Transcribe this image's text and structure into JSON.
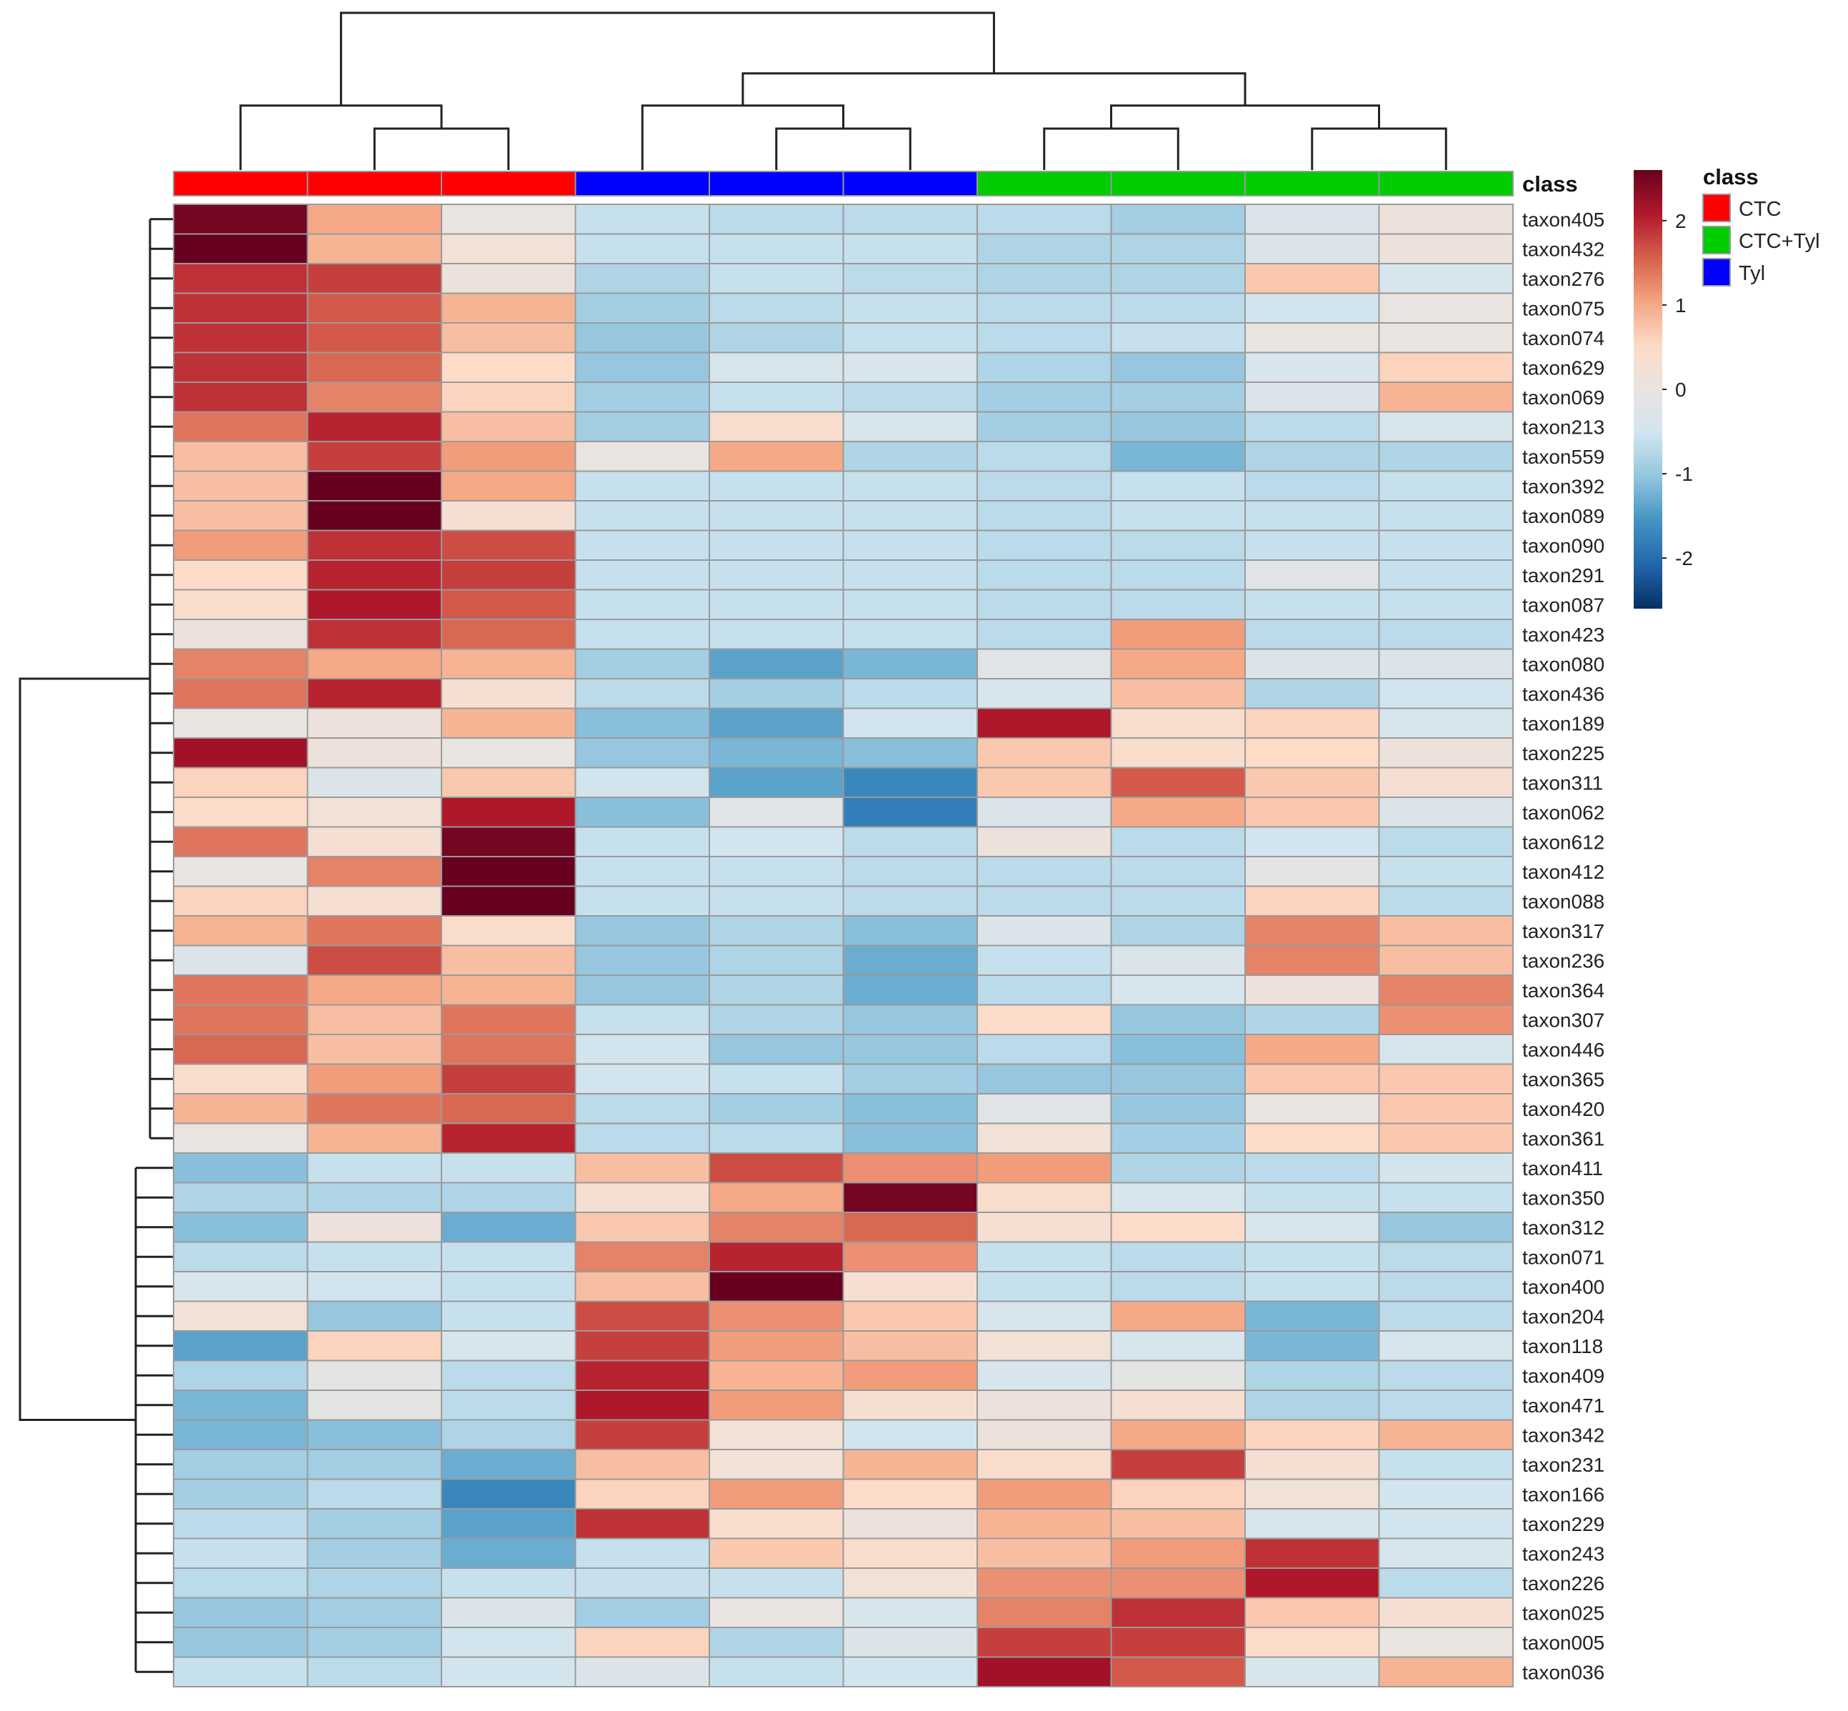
{
  "chart_data": {
    "type": "heatmap",
    "title": "",
    "class_annotation_label": "class",
    "columns": [
      "CTC",
      "CTC",
      "CTC",
      "Tyl",
      "Tyl",
      "Tyl",
      "CTC+Tyl",
      "CTC+Tyl",
      "CTC+Tyl",
      "CTC+Tyl"
    ],
    "rows": [
      "taxon405",
      "taxon432",
      "taxon276",
      "taxon075",
      "taxon074",
      "taxon629",
      "taxon069",
      "taxon213",
      "taxon559",
      "taxon392",
      "taxon089",
      "taxon090",
      "taxon291",
      "taxon087",
      "taxon423",
      "taxon080",
      "taxon436",
      "taxon189",
      "taxon225",
      "taxon311",
      "taxon062",
      "taxon612",
      "taxon412",
      "taxon088",
      "taxon317",
      "taxon236",
      "taxon364",
      "taxon307",
      "taxon446",
      "taxon365",
      "taxon420",
      "taxon361",
      "taxon411",
      "taxon350",
      "taxon312",
      "taxon071",
      "taxon400",
      "taxon204",
      "taxon118",
      "taxon409",
      "taxon471",
      "taxon342",
      "taxon231",
      "taxon166",
      "taxon229",
      "taxon243",
      "taxon226",
      "taxon025",
      "taxon005",
      "taxon036"
    ],
    "values": [
      [
        2.5,
        1.0,
        0.0,
        -0.6,
        -0.7,
        -0.7,
        -0.7,
        -0.9,
        -0.3,
        0.1
      ],
      [
        2.6,
        0.9,
        0.2,
        -0.6,
        -0.6,
        -0.6,
        -0.8,
        -0.8,
        -0.3,
        0.1
      ],
      [
        1.9,
        1.8,
        0.1,
        -0.8,
        -0.6,
        -0.7,
        -0.8,
        -0.8,
        0.7,
        -0.4
      ],
      [
        1.9,
        1.6,
        0.9,
        -0.9,
        -0.7,
        -0.6,
        -0.7,
        -0.7,
        -0.5,
        0.0
      ],
      [
        1.9,
        1.6,
        0.8,
        -1.0,
        -0.8,
        -0.6,
        -0.7,
        -0.6,
        0.0,
        0.0
      ],
      [
        1.9,
        1.5,
        0.5,
        -1.0,
        -0.4,
        -0.4,
        -0.8,
        -1.0,
        -0.4,
        0.6
      ],
      [
        1.9,
        1.3,
        0.6,
        -0.9,
        -0.6,
        -0.7,
        -0.9,
        -0.9,
        -0.3,
        0.9
      ],
      [
        1.4,
        2.0,
        0.8,
        -0.9,
        0.4,
        -0.4,
        -0.9,
        -1.0,
        -0.7,
        -0.4
      ],
      [
        0.8,
        1.8,
        1.1,
        0.0,
        1.0,
        -0.8,
        -0.7,
        -1.2,
        -0.8,
        -0.8
      ],
      [
        0.8,
        2.6,
        1.0,
        -0.6,
        -0.6,
        -0.6,
        -0.7,
        -0.6,
        -0.7,
        -0.6
      ],
      [
        0.8,
        2.6,
        0.3,
        -0.6,
        -0.6,
        -0.6,
        -0.7,
        -0.6,
        -0.6,
        -0.6
      ],
      [
        1.1,
        1.9,
        1.7,
        -0.6,
        -0.6,
        -0.6,
        -0.7,
        -0.7,
        -0.6,
        -0.6
      ],
      [
        0.5,
        2.0,
        1.8,
        -0.6,
        -0.6,
        -0.6,
        -0.7,
        -0.7,
        -0.2,
        -0.6
      ],
      [
        0.4,
        2.1,
        1.6,
        -0.6,
        -0.6,
        -0.6,
        -0.7,
        -0.7,
        -0.6,
        -0.6
      ],
      [
        0.1,
        1.9,
        1.5,
        -0.6,
        -0.6,
        -0.6,
        -0.7,
        1.1,
        -0.7,
        -0.7
      ],
      [
        1.3,
        1.0,
        0.9,
        -0.9,
        -1.4,
        -1.2,
        -0.2,
        1.0,
        -0.3,
        -0.3
      ],
      [
        1.4,
        2.0,
        0.3,
        -0.7,
        -0.9,
        -0.7,
        -0.4,
        0.8,
        -0.8,
        -0.5
      ],
      [
        0.0,
        0.1,
        0.9,
        -1.1,
        -1.4,
        -0.5,
        2.1,
        0.4,
        0.6,
        -0.4
      ],
      [
        2.2,
        0.1,
        0.0,
        -1.0,
        -1.2,
        -1.1,
        0.7,
        0.4,
        0.5,
        0.1
      ],
      [
        0.6,
        -0.3,
        0.7,
        -0.5,
        -1.4,
        -1.7,
        0.7,
        1.6,
        0.7,
        0.3
      ],
      [
        0.5,
        0.2,
        2.1,
        -1.1,
        -0.2,
        -1.8,
        -0.3,
        1.0,
        0.7,
        -0.3
      ],
      [
        1.4,
        0.3,
        2.5,
        -0.6,
        -0.5,
        -0.7,
        0.1,
        -0.7,
        -0.5,
        -0.7
      ],
      [
        0.0,
        1.3,
        2.6,
        -0.6,
        -0.6,
        -0.7,
        -0.7,
        -0.7,
        -0.1,
        -0.6
      ],
      [
        0.6,
        0.3,
        2.6,
        -0.6,
        -0.6,
        -0.7,
        -0.7,
        -0.7,
        0.6,
        -0.7
      ],
      [
        0.9,
        1.4,
        0.4,
        -1.0,
        -0.8,
        -1.1,
        -0.3,
        -0.8,
        1.3,
        0.8
      ],
      [
        -0.3,
        1.7,
        0.8,
        -1.0,
        -0.8,
        -1.3,
        -0.6,
        -0.3,
        1.3,
        0.8
      ],
      [
        1.4,
        1.0,
        0.9,
        -1.0,
        -0.8,
        -1.3,
        -0.7,
        -0.4,
        0.1,
        1.3
      ],
      [
        1.4,
        0.8,
        1.4,
        -0.6,
        -0.8,
        -1.0,
        0.5,
        -1.0,
        -0.8,
        1.2
      ],
      [
        1.5,
        0.8,
        1.4,
        -0.5,
        -1.0,
        -1.0,
        -0.7,
        -1.1,
        1.0,
        -0.4
      ],
      [
        0.4,
        1.1,
        1.8,
        -0.5,
        -0.6,
        -0.9,
        -1.0,
        -1.0,
        0.7,
        0.7
      ],
      [
        0.9,
        1.4,
        1.5,
        -0.7,
        -0.9,
        -1.1,
        -0.2,
        -1.0,
        0.0,
        0.7
      ],
      [
        0.0,
        0.9,
        2.0,
        -0.7,
        -0.7,
        -1.1,
        0.2,
        -0.9,
        0.5,
        0.7
      ],
      [
        -1.1,
        -0.6,
        -0.6,
        0.8,
        1.7,
        1.2,
        1.1,
        -0.8,
        -0.7,
        -0.5
      ],
      [
        -0.8,
        -0.8,
        -0.8,
        0.3,
        1.0,
        2.5,
        0.4,
        -0.4,
        -0.6,
        -0.6
      ],
      [
        -1.1,
        0.1,
        -1.3,
        0.7,
        1.3,
        1.5,
        0.3,
        0.5,
        -0.4,
        -1.0
      ],
      [
        -0.7,
        -0.6,
        -0.6,
        1.3,
        2.0,
        1.2,
        -0.6,
        -0.7,
        -0.6,
        -0.7
      ],
      [
        -0.4,
        -0.5,
        -0.6,
        0.8,
        2.7,
        0.3,
        -0.6,
        -0.7,
        -0.6,
        -0.7
      ],
      [
        0.2,
        -1.0,
        -0.6,
        1.7,
        1.2,
        0.7,
        -0.4,
        1.0,
        -1.2,
        -0.7
      ],
      [
        -1.4,
        0.6,
        -0.4,
        1.8,
        1.1,
        0.8,
        0.2,
        -0.4,
        -1.2,
        -0.4
      ],
      [
        -0.8,
        -0.1,
        -0.7,
        2.0,
        0.9,
        1.1,
        -0.4,
        -0.1,
        -0.8,
        -0.7
      ],
      [
        -1.2,
        -0.1,
        -0.7,
        2.1,
        1.1,
        0.3,
        0.1,
        0.3,
        -0.8,
        -0.7
      ],
      [
        -1.2,
        -1.1,
        -0.8,
        1.8,
        0.2,
        -0.5,
        0.1,
        1.0,
        0.6,
        0.9
      ],
      [
        -0.9,
        -0.9,
        -1.3,
        0.8,
        0.2,
        0.9,
        0.4,
        1.8,
        0.3,
        -0.6
      ],
      [
        -0.9,
        -0.7,
        -1.7,
        0.6,
        1.1,
        0.5,
        1.1,
        0.6,
        0.2,
        -0.5
      ],
      [
        -0.7,
        -0.9,
        -1.4,
        1.9,
        0.4,
        0.1,
        0.9,
        0.8,
        -0.4,
        -0.5
      ],
      [
        -0.6,
        -0.9,
        -1.3,
        -0.6,
        0.7,
        0.4,
        0.8,
        1.1,
        1.9,
        -0.4
      ],
      [
        -0.7,
        -0.8,
        -0.6,
        -0.6,
        -0.6,
        0.2,
        1.2,
        1.2,
        2.1,
        -0.7
      ],
      [
        -1.0,
        -0.9,
        -0.3,
        -0.9,
        0.0,
        -0.4,
        1.3,
        1.9,
        0.7,
        0.3
      ],
      [
        -1.0,
        -0.9,
        -0.5,
        0.6,
        -0.8,
        -0.3,
        1.8,
        1.8,
        0.5,
        0.0
      ],
      [
        -0.6,
        -0.7,
        -0.5,
        -0.3,
        -0.6,
        -0.5,
        2.2,
        1.6,
        -0.4,
        0.9
      ]
    ],
    "color_scale": {
      "ticks": [
        2,
        1,
        0,
        -1,
        -2
      ],
      "tick_labels": [
        "2",
        "1",
        "0",
        "-1",
        "-2"
      ],
      "range": [
        -2.6,
        2.6
      ],
      "colors": [
        "#053061",
        "#2166ac",
        "#4393c3",
        "#92c5de",
        "#d1e5f0",
        "#e9e4e0",
        "#fddbc7",
        "#f4a582",
        "#d6604d",
        "#b2182b",
        "#67001f"
      ]
    },
    "legend": {
      "title": "class",
      "entries": [
        {
          "label": "CTC",
          "color": "#ff0000"
        },
        {
          "label": "CTC+Tyl",
          "color": "#00cc00"
        },
        {
          "label": "Tyl",
          "color": "#0000ff"
        }
      ],
      "placement": "right"
    },
    "column_dendrogram": [
      [
        "c",
        [
          "c",
          [
            "l",
            0
          ],
          [
            "c",
            [
              "l",
              1
            ],
            [
              "l",
              2
            ]
          ]
        ],
        [
          "c",
          [
            "c",
            [
              "l",
              3
            ],
            [
              "c",
              [
                "l",
                4
              ],
              [
                "l",
                5
              ]
            ]
          ],
          [
            "c",
            [
              "c",
              [
                "l",
                6
              ],
              [
                "l",
                7
              ]
            ],
            [
              "c",
              [
                "l",
                8
              ],
              [
                "l",
                9
              ]
            ]
          ]
        ]
      ]
    ],
    "row_dendrogram_clusters": [
      "taxon405 ... taxon361",
      "taxon411 ... taxon036"
    ]
  }
}
